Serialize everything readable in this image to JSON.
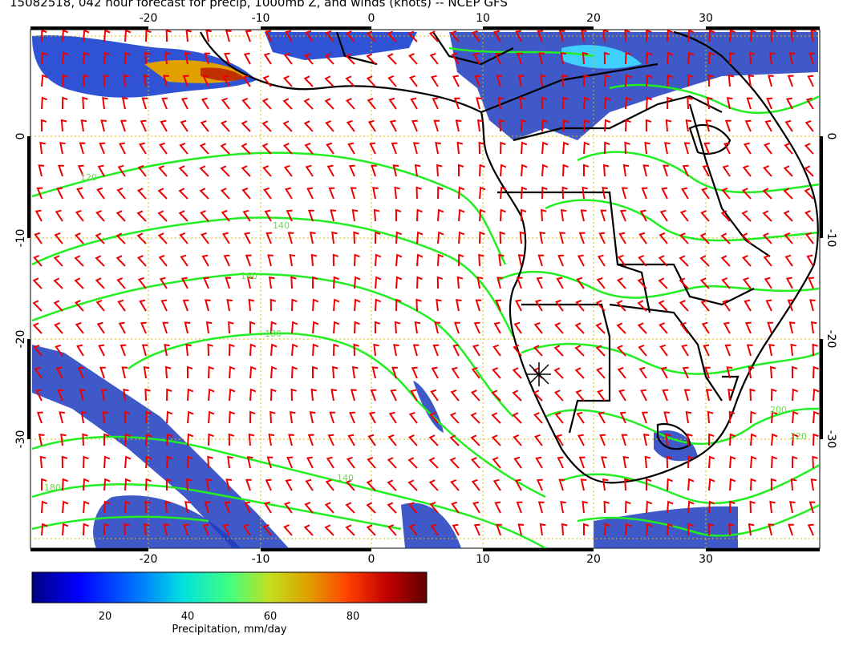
{
  "title": "15082518, 042 hour forecast for precip, 1000mb Z, and winds (knots) -- NCEP GFS",
  "axes": {
    "lon_ticks": [
      "-20",
      "-10",
      "0",
      "10",
      "20",
      "30"
    ],
    "lat_ticks": [
      "0",
      "-10",
      "-20",
      "-30"
    ]
  },
  "colorbar": {
    "label": "Precipitation, mm/day",
    "ticks": [
      "20",
      "40",
      "60",
      "80"
    ],
    "colors": [
      "#00007f",
      "#0000ff",
      "#0080ff",
      "#00e0e0",
      "#40ff80",
      "#c0e020",
      "#e0a000",
      "#ff4000",
      "#c00000",
      "#600000"
    ]
  },
  "contour_labels": [
    "120",
    "140",
    "160",
    "180",
    "200",
    "220"
  ],
  "colors": {
    "contour": "#22ee22",
    "wind_barb": "#ee0000",
    "coast": "#000000",
    "grid": "#ddbb00"
  },
  "marker": "star-marker"
}
